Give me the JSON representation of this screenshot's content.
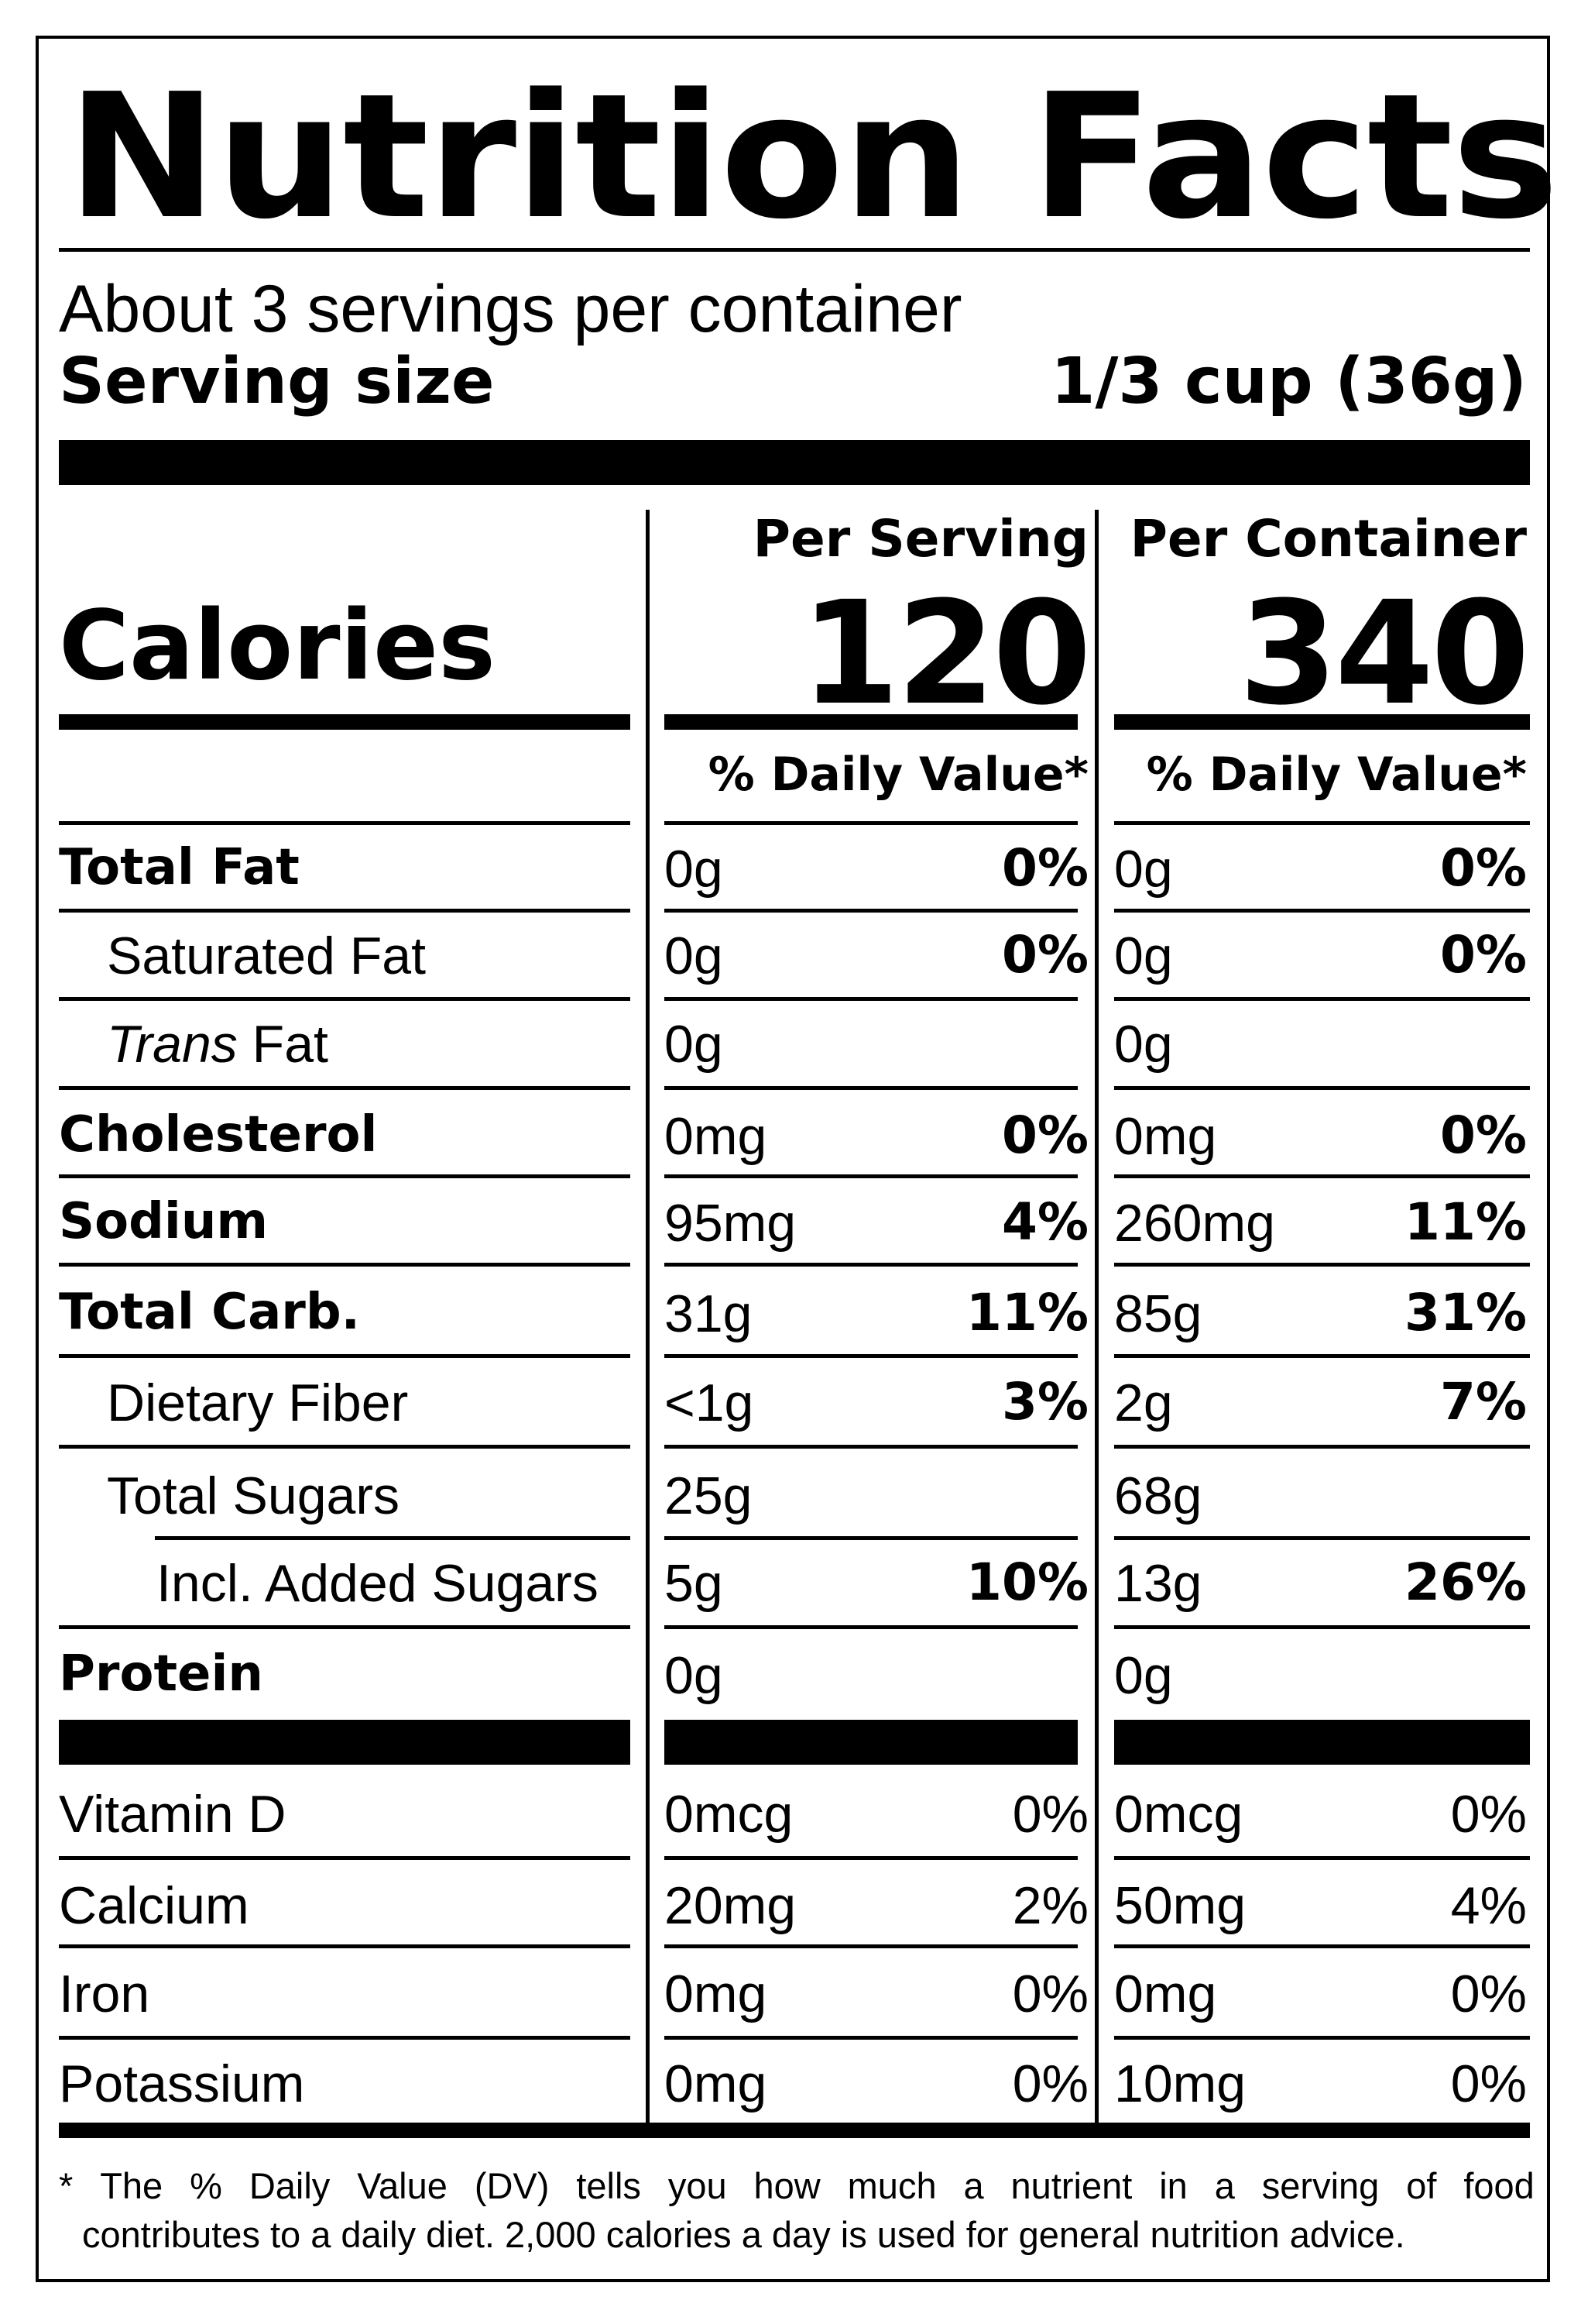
{
  "title": "Nutrition Facts",
  "servings_per_container": "About 3 servings per container",
  "serving_size_label": "Serving size",
  "serving_size_value": "1/3 cup (36g)",
  "columns": {
    "per_serving": "Per Serving",
    "per_container": "Per Container"
  },
  "calories": {
    "label": "Calories",
    "per_serving": "120",
    "per_container": "340"
  },
  "daily_value_header": "% Daily Value*",
  "nutrients": [
    {
      "label": "Total Fat",
      "serving_amount": "0g",
      "serving_dv": "0%",
      "container_amount": "0g",
      "container_dv": "0%"
    },
    {
      "label": "Saturated Fat",
      "serving_amount": "0g",
      "serving_dv": "0%",
      "container_amount": "0g",
      "container_dv": "0%"
    },
    {
      "label_italic": "Trans",
      "label": " Fat",
      "serving_amount": "0g",
      "serving_dv": "",
      "container_amount": "0g",
      "container_dv": ""
    },
    {
      "label": "Cholesterol",
      "serving_amount": "0mg",
      "serving_dv": "0%",
      "container_amount": "0mg",
      "container_dv": "0%"
    },
    {
      "label": "Sodium",
      "serving_amount": "95mg",
      "serving_dv": "4%",
      "container_amount": "260mg",
      "container_dv": "11%"
    },
    {
      "label": "Total Carb.",
      "serving_amount": "31g",
      "serving_dv": "11%",
      "container_amount": "85g",
      "container_dv": "31%"
    },
    {
      "label": "Dietary Fiber",
      "serving_amount": "<1g",
      "serving_dv": "3%",
      "container_amount": "2g",
      "container_dv": "7%"
    },
    {
      "label": "Total Sugars",
      "serving_amount": "25g",
      "serving_dv": "",
      "container_amount": "68g",
      "container_dv": ""
    },
    {
      "label": "Incl. Added Sugars",
      "serving_amount": "5g",
      "serving_dv": "10%",
      "container_amount": "13g",
      "container_dv": "26%"
    },
    {
      "label": "Protein",
      "serving_amount": "0g",
      "serving_dv": "",
      "container_amount": "0g",
      "container_dv": ""
    }
  ],
  "vitamins": [
    {
      "label": "Vitamin D",
      "serving_amount": "0mcg",
      "serving_dv": "0%",
      "container_amount": "0mcg",
      "container_dv": "0%"
    },
    {
      "label": "Calcium",
      "serving_amount": "20mg",
      "serving_dv": "2%",
      "container_amount": "50mg",
      "container_dv": "4%"
    },
    {
      "label": "Iron",
      "serving_amount": "0mg",
      "serving_dv": "0%",
      "container_amount": "0mg",
      "container_dv": "0%"
    },
    {
      "label": "Potassium",
      "serving_amount": "0mg",
      "serving_dv": "0%",
      "container_amount": "10mg",
      "container_dv": "0%"
    }
  ],
  "footnote": {
    "line1_words": [
      "*",
      "The",
      "%",
      "Daily",
      "Value",
      "(DV)",
      "tells",
      "you",
      "how",
      "much",
      "a",
      "nutrient",
      "in",
      "a",
      "serving",
      "of",
      "food"
    ],
    "line2": "contributes to a daily diet. 2,000 calories a day is used for general nutrition advice."
  }
}
